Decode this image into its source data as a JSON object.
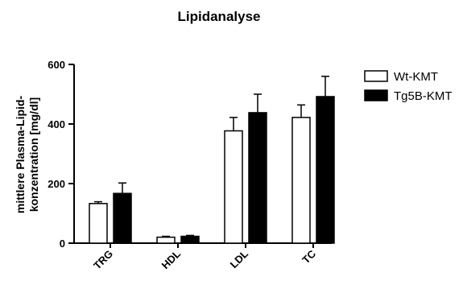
{
  "chart_data": {
    "type": "bar",
    "title": "Lipidanalyse",
    "xlabel": "",
    "ylabel_lines": [
      "mittlere Plasma-Lipid-",
      "konzentration [mg/dl]"
    ],
    "ylim": [
      0,
      600
    ],
    "yticks": [
      "0",
      "200",
      "400",
      "600"
    ],
    "categories": [
      "TRG",
      "HDL",
      "LDL",
      "TC"
    ],
    "series": [
      {
        "name": "Wt-KMT",
        "color": "#ffffff",
        "values": [
          133,
          20,
          377,
          422
        ],
        "errors": [
          6,
          3,
          45,
          42
        ]
      },
      {
        "name": "Tg5B-KMT",
        "color": "#000000",
        "values": [
          167,
          23,
          438,
          492
        ],
        "errors": [
          35,
          3,
          62,
          68
        ]
      }
    ],
    "error_bars": "upper",
    "legend_position": "right",
    "grid": false
  }
}
